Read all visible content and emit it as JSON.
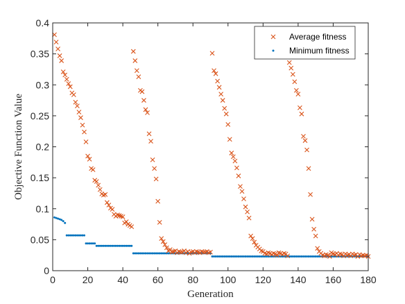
{
  "chart_data": {
    "type": "scatter",
    "xlabel": "Generation",
    "ylabel": "Objective Function Value",
    "xlim": [
      0,
      180
    ],
    "ylim": [
      0,
      0.4
    ],
    "xticks": [
      0,
      20,
      40,
      60,
      80,
      100,
      120,
      140,
      160,
      180
    ],
    "yticks": [
      0,
      0.05,
      0.1,
      0.15,
      0.2,
      0.25,
      0.3,
      0.35,
      0.4
    ],
    "xtick_labels": [
      "0",
      "20",
      "40",
      "60",
      "80",
      "100",
      "120",
      "140",
      "160",
      "180"
    ],
    "ytick_labels": [
      "0",
      "0.05",
      "0.1",
      "0.15",
      "0.2",
      "0.25",
      "0.3",
      "0.35",
      "0.4"
    ],
    "grid": false,
    "legend_position": "top-right",
    "series": [
      {
        "name": "Average fitness",
        "marker": "x",
        "color": "#D95319",
        "points": [
          [
            1,
            0.381
          ],
          [
            2,
            0.369
          ],
          [
            3,
            0.358
          ],
          [
            4,
            0.347
          ],
          [
            5,
            0.339
          ],
          [
            6,
            0.321
          ],
          [
            7,
            0.316
          ],
          [
            8,
            0.309
          ],
          [
            9,
            0.302
          ],
          [
            10,
            0.297
          ],
          [
            11,
            0.287
          ],
          [
            12,
            0.284
          ],
          [
            13,
            0.272
          ],
          [
            14,
            0.266
          ],
          [
            15,
            0.256
          ],
          [
            16,
            0.247
          ],
          [
            17,
            0.235
          ],
          [
            18,
            0.224
          ],
          [
            19,
            0.208
          ],
          [
            20,
            0.185
          ],
          [
            21,
            0.18
          ],
          [
            22,
            0.165
          ],
          [
            23,
            0.163
          ],
          [
            24,
            0.146
          ],
          [
            25,
            0.144
          ],
          [
            26,
            0.138
          ],
          [
            27,
            0.131
          ],
          [
            28,
            0.124
          ],
          [
            29,
            0.122
          ],
          [
            30,
            0.123
          ],
          [
            31,
            0.11
          ],
          [
            32,
            0.106
          ],
          [
            33,
            0.101
          ],
          [
            34,
            0.099
          ],
          [
            35,
            0.091
          ],
          [
            36,
            0.088
          ],
          [
            37,
            0.09
          ],
          [
            38,
            0.089
          ],
          [
            39,
            0.088
          ],
          [
            40,
            0.087
          ],
          [
            41,
            0.077
          ],
          [
            42,
            0.079
          ],
          [
            43,
            0.075
          ],
          [
            44,
            0.073
          ],
          [
            45,
            0.071
          ],
          [
            46,
            0.354
          ],
          [
            47,
            0.339
          ],
          [
            48,
            0.323
          ],
          [
            49,
            0.313
          ],
          [
            50,
            0.291
          ],
          [
            51,
            0.289
          ],
          [
            52,
            0.275
          ],
          [
            53,
            0.26
          ],
          [
            54,
            0.255
          ],
          [
            55,
            0.221
          ],
          [
            56,
            0.209
          ],
          [
            57,
            0.179
          ],
          [
            58,
            0.165
          ],
          [
            59,
            0.148
          ],
          [
            60,
            0.112
          ],
          [
            61,
            0.078
          ],
          [
            62,
            0.052
          ],
          [
            63,
            0.047
          ],
          [
            64,
            0.042
          ],
          [
            65,
            0.037
          ],
          [
            66,
            0.032
          ],
          [
            67,
            0.034
          ],
          [
            68,
            0.03
          ],
          [
            69,
            0.031
          ],
          [
            70,
            0.032
          ],
          [
            71,
            0.029
          ],
          [
            72,
            0.031
          ],
          [
            73,
            0.03
          ],
          [
            74,
            0.03
          ],
          [
            75,
            0.032
          ],
          [
            76,
            0.029
          ],
          [
            77,
            0.031
          ],
          [
            78,
            0.028
          ],
          [
            79,
            0.03
          ],
          [
            80,
            0.031
          ],
          [
            81,
            0.029
          ],
          [
            82,
            0.031
          ],
          [
            83,
            0.03
          ],
          [
            84,
            0.029
          ],
          [
            85,
            0.031
          ],
          [
            86,
            0.03
          ],
          [
            87,
            0.03
          ],
          [
            88,
            0.031
          ],
          [
            89,
            0.029
          ],
          [
            90,
            0.03
          ],
          [
            91,
            0.351
          ],
          [
            92,
            0.323
          ],
          [
            93,
            0.318
          ],
          [
            94,
            0.306
          ],
          [
            95,
            0.296
          ],
          [
            96,
            0.285
          ],
          [
            97,
            0.275
          ],
          [
            98,
            0.262
          ],
          [
            99,
            0.253
          ],
          [
            100,
            0.236
          ],
          [
            101,
            0.212
          ],
          [
            102,
            0.19
          ],
          [
            103,
            0.184
          ],
          [
            104,
            0.177
          ],
          [
            105,
            0.166
          ],
          [
            106,
            0.153
          ],
          [
            107,
            0.136
          ],
          [
            108,
            0.128
          ],
          [
            109,
            0.116
          ],
          [
            110,
            0.103
          ],
          [
            111,
            0.095
          ],
          [
            112,
            0.085
          ],
          [
            113,
            0.056
          ],
          [
            114,
            0.052
          ],
          [
            115,
            0.046
          ],
          [
            116,
            0.041
          ],
          [
            117,
            0.038
          ],
          [
            118,
            0.035
          ],
          [
            119,
            0.032
          ],
          [
            120,
            0.031
          ],
          [
            121,
            0.028
          ],
          [
            122,
            0.027
          ],
          [
            123,
            0.029
          ],
          [
            124,
            0.028
          ],
          [
            125,
            0.026
          ],
          [
            126,
            0.028
          ],
          [
            127,
            0.027
          ],
          [
            128,
            0.025
          ],
          [
            129,
            0.029
          ],
          [
            130,
            0.028
          ],
          [
            131,
            0.026
          ],
          [
            132,
            0.028
          ],
          [
            133,
            0.027
          ],
          [
            134,
            0.024
          ],
          [
            135,
            0.336
          ],
          [
            136,
            0.327
          ],
          [
            137,
            0.317
          ],
          [
            138,
            0.305
          ],
          [
            139,
            0.291
          ],
          [
            140,
            0.285
          ],
          [
            141,
            0.263
          ],
          [
            142,
            0.253
          ],
          [
            143,
            0.217
          ],
          [
            144,
            0.21
          ],
          [
            145,
            0.195
          ],
          [
            146,
            0.165
          ],
          [
            147,
            0.123
          ],
          [
            148,
            0.083
          ],
          [
            149,
            0.067
          ],
          [
            150,
            0.056
          ],
          [
            151,
            0.036
          ],
          [
            152,
            0.031
          ],
          [
            153,
            0.028
          ],
          [
            154,
            0.025
          ],
          [
            155,
            0.024
          ],
          [
            156,
            0.026
          ],
          [
            157,
            0.025
          ],
          [
            158,
            0.023
          ],
          [
            159,
            0.029
          ],
          [
            160,
            0.027
          ],
          [
            161,
            0.026
          ],
          [
            162,
            0.028
          ],
          [
            163,
            0.025
          ],
          [
            164,
            0.027
          ],
          [
            165,
            0.026
          ],
          [
            166,
            0.024
          ],
          [
            167,
            0.027
          ],
          [
            168,
            0.025
          ],
          [
            169,
            0.026
          ],
          [
            170,
            0.024
          ],
          [
            171,
            0.027
          ],
          [
            172,
            0.025
          ],
          [
            173,
            0.026
          ],
          [
            174,
            0.023
          ],
          [
            175,
            0.026
          ],
          [
            176,
            0.024
          ],
          [
            177,
            0.025
          ],
          [
            178,
            0.024
          ],
          [
            179,
            0.025
          ],
          [
            180,
            0.023
          ]
        ]
      },
      {
        "name": "Minimum fitness",
        "marker": "dot",
        "color": "#0072BD",
        "segments": [
          {
            "x_start": 1,
            "x_end": 1,
            "y": 0.086
          },
          {
            "x_start": 2,
            "x_end": 2,
            "y": 0.085
          },
          {
            "x_start": 3,
            "x_end": 3,
            "y": 0.084
          },
          {
            "x_start": 4,
            "x_end": 4,
            "y": 0.083
          },
          {
            "x_start": 5,
            "x_end": 5,
            "y": 0.082
          },
          {
            "x_start": 6,
            "x_end": 6,
            "y": 0.08
          },
          {
            "x_start": 7,
            "x_end": 7,
            "y": 0.077
          },
          {
            "x_start": 8,
            "x_end": 18,
            "y": 0.057
          },
          {
            "x_start": 19,
            "x_end": 24,
            "y": 0.044
          },
          {
            "x_start": 25,
            "x_end": 45,
            "y": 0.04
          },
          {
            "x_start": 46,
            "x_end": 90,
            "y": 0.028
          },
          {
            "x_start": 91,
            "x_end": 180,
            "y": 0.023
          }
        ]
      }
    ]
  }
}
